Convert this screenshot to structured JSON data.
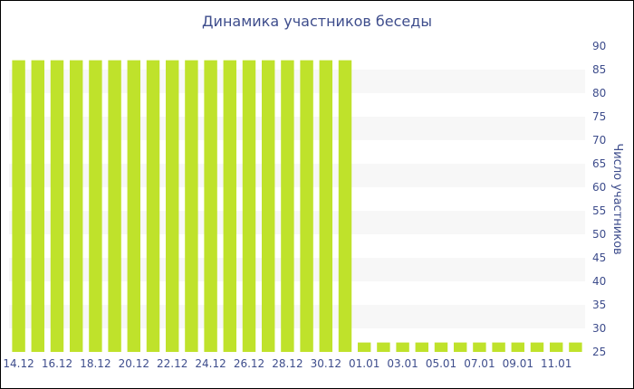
{
  "chart_data": {
    "type": "bar",
    "title": "Динамика участников беседы",
    "xlabel": "",
    "ylabel": "Число участников",
    "ylim": [
      25,
      90
    ],
    "y_ticks": [
      25,
      30,
      35,
      40,
      45,
      50,
      55,
      60,
      65,
      70,
      75,
      80,
      85,
      90
    ],
    "y_axis_position": "right",
    "grid": "alternating horizontal bands",
    "legend": "none",
    "bar_color": "#bfe22b",
    "categories": [
      "14.12",
      "15.12",
      "16.12",
      "17.12",
      "18.12",
      "19.12",
      "20.12",
      "21.12",
      "22.12",
      "23.12",
      "24.12",
      "25.12",
      "26.12",
      "27.12",
      "28.12",
      "29.12",
      "30.12",
      "31.12",
      "01.01",
      "02.01",
      "03.01",
      "04.01",
      "05.01",
      "06.01",
      "07.01",
      "08.01",
      "09.01",
      "10.01",
      "11.01",
      "12.01"
    ],
    "x_tick_labels": [
      "14.12",
      "16.12",
      "18.12",
      "20.12",
      "22.12",
      "24.12",
      "26.12",
      "28.12",
      "30.12",
      "01.01",
      "03.01",
      "05.01",
      "07.01",
      "09.01",
      "11.01"
    ],
    "values": [
      87,
      87,
      87,
      87,
      87,
      87,
      87,
      87,
      87,
      87,
      87,
      87,
      87,
      87,
      87,
      87,
      87,
      87,
      27,
      27,
      27,
      27,
      27,
      27,
      27,
      27,
      27,
      27,
      27,
      27
    ]
  },
  "colors": {
    "text": "#3e4d8c",
    "band": "#f7f7f7",
    "bar": "#bfe22b"
  }
}
